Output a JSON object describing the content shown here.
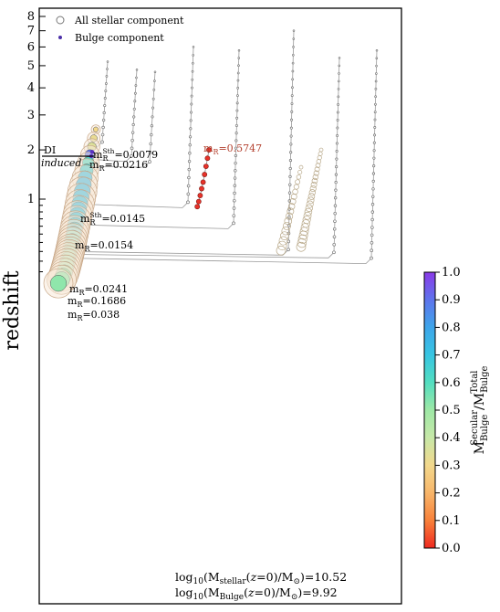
{
  "chart_data": {
    "type": "scatter",
    "ylabel": "redshift",
    "y_scale": "log",
    "y_inverted": true,
    "y_ticks": [
      {
        "value": 8,
        "label": "8"
      },
      {
        "value": 7,
        "label": "7"
      },
      {
        "value": 6,
        "label": "6"
      },
      {
        "value": 5,
        "label": "5"
      },
      {
        "value": 4,
        "label": "4"
      },
      {
        "value": 3,
        "label": "3"
      },
      {
        "value": 2,
        "label": "2"
      },
      {
        "value": 1,
        "label": "1"
      }
    ],
    "legend": {
      "placement": "top-left",
      "entries": [
        {
          "name": "All stellar component",
          "marker": "open-circle"
        },
        {
          "name": "Bulge component",
          "marker": "filled-dot",
          "color": "#4b2fa8"
        }
      ]
    },
    "colorbar": {
      "label_parts": {
        "m": "M",
        "sub1": "Bulge",
        "sup1": "Secular",
        "slash": "/",
        "m2": "M",
        "sub2": "Bulge",
        "sup2": "Total"
      },
      "ticks": [
        "0.0",
        "0.1",
        "0.2",
        "0.3",
        "0.4",
        "0.5",
        "0.6",
        "0.7",
        "0.8",
        "0.9",
        "1.0"
      ],
      "range": [
        0,
        1
      ],
      "colors": [
        "#ef2a20",
        "#f8813a",
        "#f8b66a",
        "#f2d88c",
        "#c7e8a8",
        "#9ee8a6",
        "#53dec0",
        "#37c5e2",
        "#3ea5ea",
        "#5e74ec",
        "#8a3ae8"
      ]
    },
    "merger_annotations": [
      {
        "prefix": "m",
        "sub": "R",
        "sup": "Sth",
        "value": "=0.0079"
      },
      {
        "prefix": "m",
        "sub": "R",
        "sup": "",
        "value": "=0.0216"
      },
      {
        "prefix": "m",
        "sub": "R",
        "sup": "Sth",
        "value": "=0.0145"
      },
      {
        "prefix": "m",
        "sub": "R",
        "sup": "",
        "value": "=0.0154"
      },
      {
        "prefix": "m",
        "sub": "R",
        "sup": "",
        "value": "=0.5747"
      },
      {
        "prefix": "m",
        "sub": "R",
        "sup": "",
        "value": "=0.0241"
      },
      {
        "prefix": "m",
        "sub": "R",
        "sup": "",
        "value": "=0.1686"
      },
      {
        "prefix": "m",
        "sub": "R",
        "sup": "",
        "value": "=0.038"
      }
    ],
    "disk_instability": {
      "line1": "DI",
      "line2": "induced"
    },
    "stats": {
      "stellar": {
        "log": "log",
        "sub": "10",
        "open": "(M",
        "msub": "stellar",
        "mid": "(",
        "z": "z",
        "eq0": "=0)/M",
        "sun": "⊙",
        "close": ")=10.52"
      },
      "bulge": {
        "log": "log",
        "sub": "10",
        "open": "(M",
        "msub": "Bulge",
        "mid": "(",
        "z": "z",
        "eq0": "=0)/M",
        "sun": "⊙",
        "close": ")=9.92"
      }
    },
    "main_branch": {
      "redshifts": [
        2.55,
        2.3,
        2.08,
        1.88,
        1.7,
        1.53,
        1.38,
        1.25,
        1.13,
        1.02,
        0.92,
        0.83,
        0.75,
        0.68,
        0.61,
        0.55,
        0.5,
        0.45,
        0.41,
        0.37,
        0.33,
        0.3,
        0.27,
        0.24,
        0.21,
        0.18,
        0.15,
        0.12,
        0.09,
        0.06,
        0.03,
        0.0
      ],
      "bulge_fraction": [
        0.3,
        0.32,
        0.35,
        0.9,
        0.62,
        0.66,
        0.72,
        0.74,
        0.73,
        0.72,
        0.71,
        0.72,
        0.71,
        0.7,
        0.69,
        0.68,
        0.67,
        0.6,
        0.62,
        0.61,
        0.55,
        0.54,
        0.54,
        0.53,
        0.53,
        0.53,
        0.52,
        0.52,
        0.52,
        0.52,
        0.52,
        0.52
      ]
    }
  }
}
